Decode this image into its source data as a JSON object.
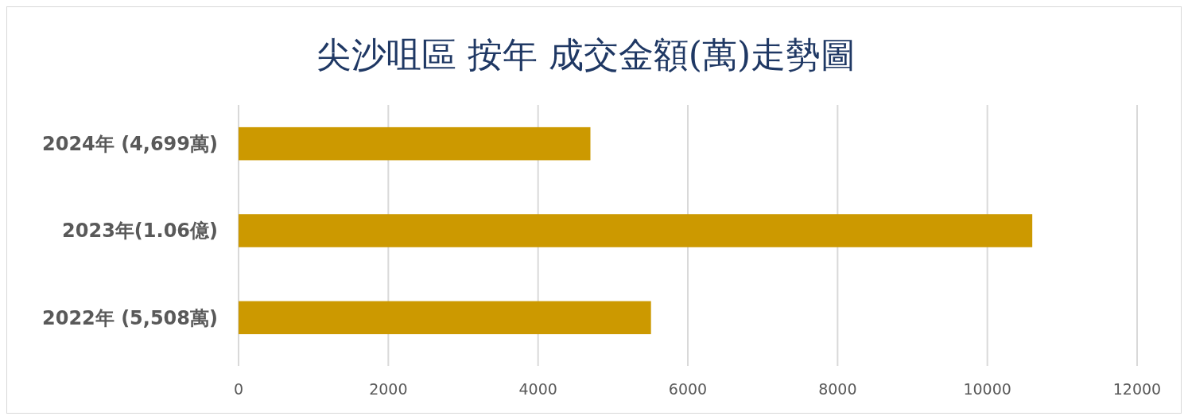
{
  "chart_data": {
    "type": "bar",
    "orientation": "horizontal",
    "title": "尖沙咀區 按年 成交金額(萬)走勢圖",
    "categories": [
      "2024年 (4,699萬)",
      "2023年(1.06億)",
      "2022年 (5,508萬)"
    ],
    "values": [
      4699,
      10600,
      5508
    ],
    "color": "#cc9900",
    "xlim": [
      0,
      12000
    ],
    "xticks": [
      0,
      2000,
      4000,
      6000,
      8000,
      10000,
      12000
    ],
    "grid": "x"
  }
}
